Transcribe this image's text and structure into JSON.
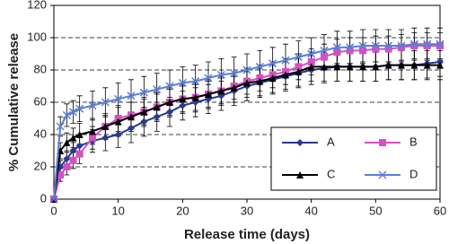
{
  "chart_data": {
    "type": "line",
    "x_label": "Release time (days)",
    "y_label": "% Cumulative release",
    "x": [
      0,
      1,
      2,
      3,
      4,
      6,
      8,
      10,
      12,
      14,
      16,
      18,
      20,
      22,
      24,
      26,
      28,
      30,
      32,
      34,
      36,
      38,
      40,
      42,
      44,
      46,
      48,
      50,
      52,
      54,
      56,
      58,
      60
    ],
    "series": [
      {
        "name": "A",
        "color": "#2b3990",
        "marker": "diamond",
        "values": [
          0,
          20,
          25,
          30,
          33,
          36,
          38,
          40,
          44,
          48,
          51,
          54,
          58,
          60,
          62,
          64,
          67,
          70,
          72,
          74,
          76,
          78,
          80,
          81,
          82,
          82,
          82,
          82,
          83,
          83,
          83,
          84,
          85
        ],
        "errors": [
          0,
          4,
          5,
          5,
          6,
          7,
          8,
          8,
          9,
          9,
          9,
          9,
          9,
          9,
          9,
          9,
          9,
          9,
          9,
          9,
          9,
          9,
          9,
          9,
          9,
          9,
          9,
          9,
          9,
          9,
          9,
          9,
          9
        ]
      },
      {
        "name": "B",
        "color": "#d64fc4",
        "marker": "square",
        "values": [
          0,
          15,
          20,
          24,
          28,
          38,
          45,
          50,
          52,
          54,
          57,
          60,
          62,
          63,
          65,
          67,
          70,
          73,
          75,
          77,
          79,
          82,
          85,
          88,
          91,
          92,
          92,
          93,
          93,
          94,
          95,
          95,
          95
        ],
        "errors": [
          0,
          4,
          5,
          5,
          6,
          7,
          7,
          8,
          8,
          8,
          8,
          8,
          8,
          8,
          8,
          8,
          8,
          8,
          8,
          8,
          8,
          8,
          8,
          8,
          8,
          8,
          8,
          8,
          8,
          8,
          8,
          8,
          8
        ]
      },
      {
        "name": "C",
        "color": "#000000",
        "marker": "triangle",
        "values": [
          0,
          30,
          35,
          38,
          40,
          42,
          45,
          48,
          51,
          54,
          57,
          60,
          62,
          63,
          65,
          67,
          69,
          72,
          73,
          75,
          77,
          79,
          82,
          82,
          82,
          82,
          82,
          82,
          83,
          83,
          83,
          83,
          83
        ],
        "errors": [
          0,
          5,
          6,
          6,
          7,
          8,
          8,
          9,
          9,
          9,
          9,
          9,
          9,
          9,
          9,
          9,
          9,
          9,
          9,
          9,
          9,
          9,
          9,
          9,
          9,
          9,
          9,
          9,
          9,
          9,
          9,
          9,
          9
        ]
      },
      {
        "name": "D",
        "color": "#5b7fd6",
        "marker": "x",
        "values": [
          0,
          45,
          52,
          54,
          56,
          58,
          60,
          62,
          64,
          66,
          68,
          70,
          72,
          73,
          75,
          77,
          78,
          80,
          82,
          84,
          86,
          88,
          90,
          92,
          94,
          94,
          95,
          95,
          95,
          95,
          96,
          96,
          96
        ],
        "errors": [
          0,
          6,
          7,
          7,
          8,
          9,
          9,
          10,
          10,
          10,
          10,
          10,
          10,
          10,
          10,
          10,
          10,
          10,
          10,
          10,
          10,
          10,
          10,
          10,
          10,
          10,
          10,
          10,
          10,
          10,
          10,
          10,
          10
        ]
      }
    ],
    "xlim": [
      0,
      60
    ],
    "xticks": [
      0,
      10,
      20,
      30,
      40,
      50,
      60
    ],
    "ylim": [
      0,
      120
    ],
    "yticks": [
      0,
      20,
      40,
      60,
      80,
      100,
      120
    ],
    "grid": true,
    "legend": "lower right"
  }
}
